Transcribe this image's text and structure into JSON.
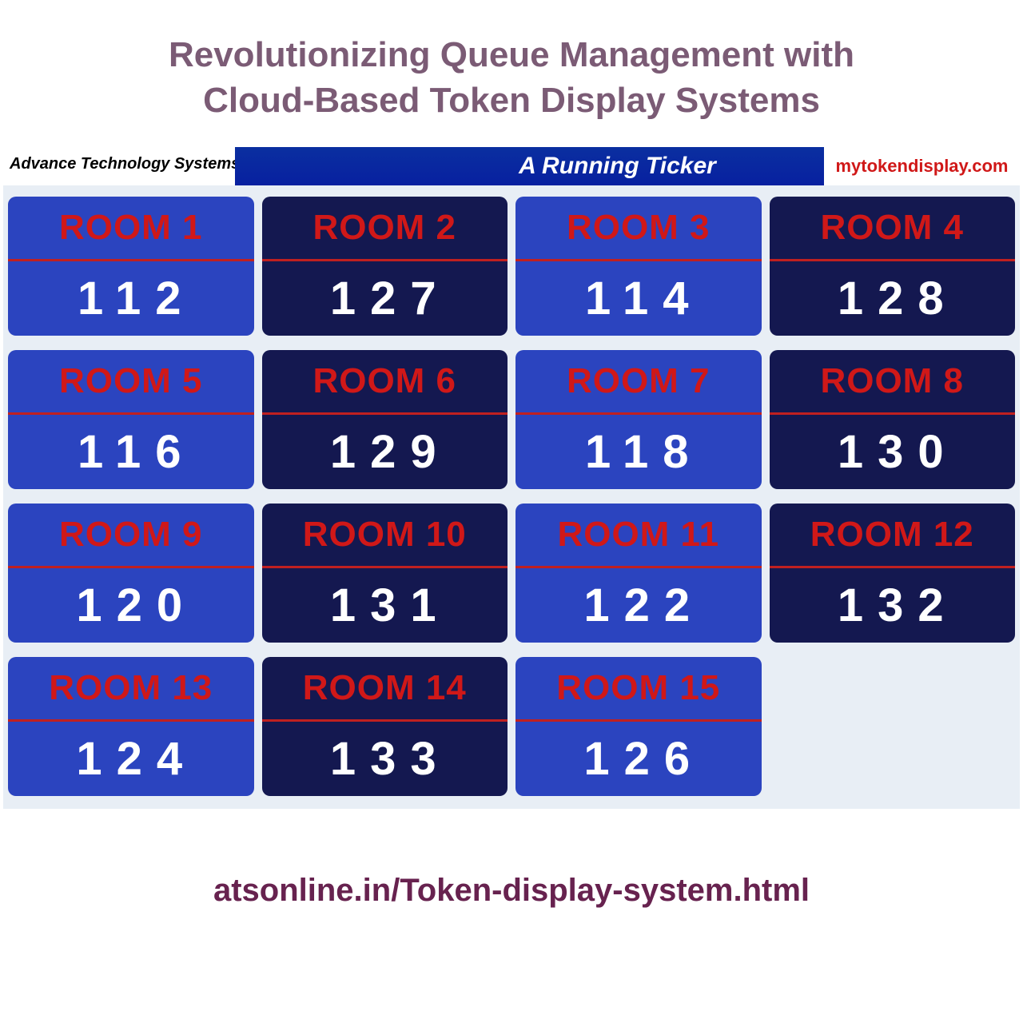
{
  "heading": {
    "line1": "Revolutionizing Queue Management with",
    "line2": "Cloud-Based Token Display Systems",
    "color": "#7b5b75",
    "fontsize": 44
  },
  "topbar": {
    "left_text": "Advance Technology Systems",
    "center_text": "A Running Ticker",
    "right_text": "mytokendisplay.com",
    "center_bg": "#0a24a4",
    "right_color": "#d01818"
  },
  "card_styles": {
    "light": {
      "bg": "#2b44bf",
      "title_color": "#d01818",
      "divider_color": "#c02020"
    },
    "dark": {
      "bg": "#141850",
      "title_color": "#d01818",
      "divider_color": "#c02020"
    }
  },
  "cards": [
    {
      "title": "ROOM 1",
      "number": "112",
      "variant": "light"
    },
    {
      "title": "ROOM 2",
      "number": "127",
      "variant": "dark"
    },
    {
      "title": "ROOM 3",
      "number": "114",
      "variant": "light"
    },
    {
      "title": "ROOM 4",
      "number": "128",
      "variant": "dark"
    },
    {
      "title": "ROOM 5",
      "number": "116",
      "variant": "light"
    },
    {
      "title": "ROOM 6",
      "number": "129",
      "variant": "dark"
    },
    {
      "title": "ROOM 7",
      "number": "118",
      "variant": "light"
    },
    {
      "title": "ROOM 8",
      "number": "130",
      "variant": "dark"
    },
    {
      "title": "ROOM 9",
      "number": "120",
      "variant": "light"
    },
    {
      "title": "ROOM 10",
      "number": "131",
      "variant": "dark"
    },
    {
      "title": "ROOM 11",
      "number": "122",
      "variant": "light"
    },
    {
      "title": "ROOM 12",
      "number": "132",
      "variant": "dark"
    },
    {
      "title": "ROOM 13",
      "number": "124",
      "variant": "light"
    },
    {
      "title": "ROOM 14",
      "number": "133",
      "variant": "dark"
    },
    {
      "title": "ROOM 15",
      "number": "126",
      "variant": "light"
    }
  ],
  "footer": {
    "url": "atsonline.in/Token-display-system.html",
    "color": "#67224f",
    "fontsize": 40
  }
}
